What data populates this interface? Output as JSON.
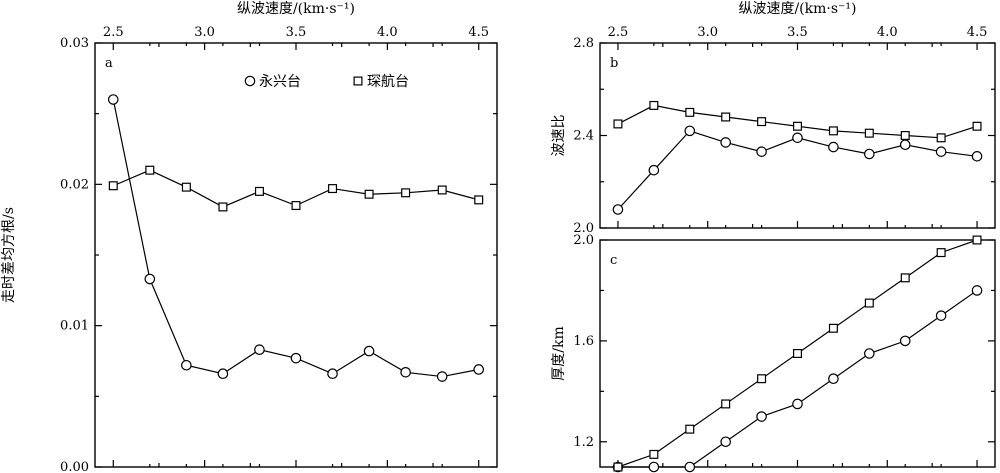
{
  "chart_data": [
    {
      "id": "a",
      "type": "line",
      "panel_label": "a",
      "xlabel": "纵波速度/(km·s⁻¹)",
      "ylabel": "走时差均方根/s",
      "xlim": [
        2.4,
        4.6
      ],
      "ylim": [
        0.0,
        0.03
      ],
      "x_ticks": [
        "2.5",
        "3.0",
        "3.5",
        "4.0",
        "4.5"
      ],
      "y_ticks": [
        "0.00",
        "0.01",
        "0.02",
        "0.03"
      ],
      "legend": [
        "永兴台",
        "琛航台"
      ],
      "series": [
        {
          "name": "永兴台",
          "marker": "circle",
          "x": [
            2.5,
            2.7,
            2.9,
            3.1,
            3.3,
            3.5,
            3.7,
            3.9,
            4.1,
            4.3,
            4.5
          ],
          "y": [
            0.026,
            0.0133,
            0.0072,
            0.0066,
            0.0083,
            0.0077,
            0.0066,
            0.0082,
            0.0067,
            0.0064,
            0.0069
          ]
        },
        {
          "name": "琛航台",
          "marker": "square",
          "x": [
            2.5,
            2.7,
            2.9,
            3.1,
            3.3,
            3.5,
            3.7,
            3.9,
            4.1,
            4.3,
            4.5
          ],
          "y": [
            0.0199,
            0.021,
            0.0198,
            0.0184,
            0.0195,
            0.0185,
            0.0197,
            0.0193,
            0.0194,
            0.0196,
            0.0189
          ]
        }
      ]
    },
    {
      "id": "b",
      "type": "line",
      "panel_label": "b",
      "xlabel": "纵波速度/(km·s⁻¹)",
      "ylabel": "波速比",
      "xlim": [
        2.4,
        4.6
      ],
      "ylim": [
        2.0,
        2.8
      ],
      "x_ticks": [
        "2.5",
        "3.0",
        "3.5",
        "4.0",
        "4.5"
      ],
      "y_ticks": [
        "2.0",
        "2.4",
        "2.8"
      ],
      "series": [
        {
          "name": "永兴台",
          "marker": "circle",
          "x": [
            2.5,
            2.7,
            2.9,
            3.1,
            3.3,
            3.5,
            3.7,
            3.9,
            4.1,
            4.3,
            4.5
          ],
          "y": [
            2.08,
            2.25,
            2.42,
            2.37,
            2.33,
            2.39,
            2.35,
            2.32,
            2.36,
            2.33,
            2.31
          ]
        },
        {
          "name": "琛航台",
          "marker": "square",
          "x": [
            2.5,
            2.7,
            2.9,
            3.1,
            3.3,
            3.5,
            3.7,
            3.9,
            4.1,
            4.3,
            4.5
          ],
          "y": [
            2.45,
            2.53,
            2.5,
            2.48,
            2.46,
            2.44,
            2.42,
            2.41,
            2.4,
            2.39,
            2.44
          ]
        }
      ]
    },
    {
      "id": "c",
      "type": "line",
      "panel_label": "c",
      "ylabel": "厚度/km",
      "xlim": [
        2.4,
        4.6
      ],
      "ylim": [
        1.1,
        2.0
      ],
      "y_ticks": [
        "1.2",
        "1.6",
        "2.0"
      ],
      "series": [
        {
          "name": "永兴台",
          "marker": "circle",
          "x": [
            2.5,
            2.7,
            2.9,
            3.1,
            3.3,
            3.5,
            3.7,
            3.9,
            4.1,
            4.3,
            4.5
          ],
          "y": [
            1.1,
            1.1,
            1.1,
            1.2,
            1.3,
            1.35,
            1.45,
            1.55,
            1.6,
            1.7,
            1.8
          ]
        },
        {
          "name": "琛航台",
          "marker": "square",
          "x": [
            2.5,
            2.7,
            2.9,
            3.1,
            3.3,
            3.5,
            3.7,
            3.9,
            4.1,
            4.3,
            4.5
          ],
          "y": [
            1.1,
            1.15,
            1.25,
            1.35,
            1.45,
            1.55,
            1.65,
            1.75,
            1.85,
            1.95,
            2.0
          ]
        }
      ]
    }
  ]
}
